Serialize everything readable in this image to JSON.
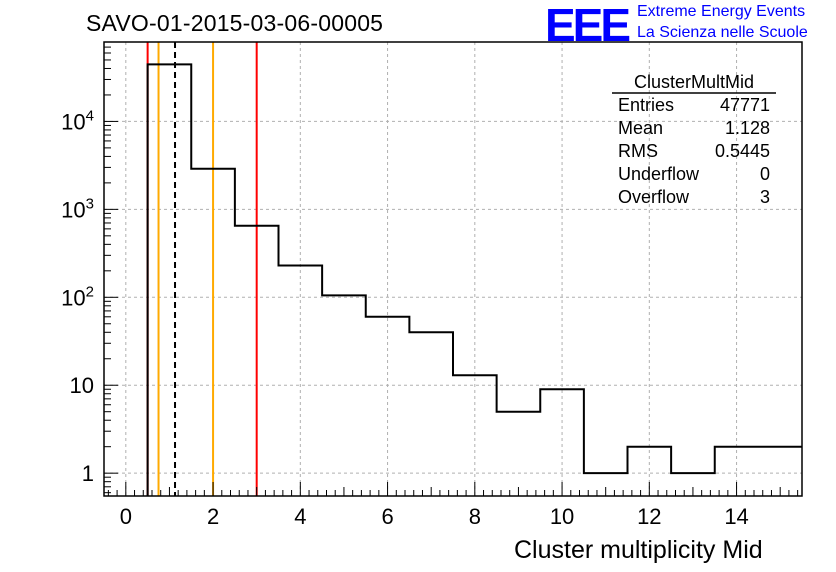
{
  "header": {
    "run_title": "SAVO-01-2015-03-06-00005",
    "logo_text": "EEE",
    "logo_line1": "Extreme Energy Events",
    "logo_line2": "La Scienza nelle Scuole",
    "logo_color": "#0000ff"
  },
  "chart_data": {
    "type": "histogram",
    "title": "ClusterMultMid",
    "xlabel": "Cluster multiplicity Mid",
    "ylabel": "",
    "y_scale": "log",
    "xlim": [
      -0.5,
      15.5
    ],
    "ylim": [
      0.55,
      80000
    ],
    "x_ticks": [
      0,
      2,
      4,
      6,
      8,
      10,
      12,
      14
    ],
    "y_ticks": [
      {
        "value": 1,
        "base": "1",
        "exp": ""
      },
      {
        "value": 10,
        "base": "10",
        "exp": ""
      },
      {
        "value": 100,
        "base": "10",
        "exp": "2"
      },
      {
        "value": 1000,
        "base": "10",
        "exp": "3"
      },
      {
        "value": 10000,
        "base": "10",
        "exp": "4"
      }
    ],
    "bins": [
      {
        "low": 0.5,
        "high": 1.5,
        "value": 44500
      },
      {
        "low": 1.5,
        "high": 2.5,
        "value": 2900
      },
      {
        "low": 2.5,
        "high": 3.5,
        "value": 650
      },
      {
        "low": 3.5,
        "high": 4.5,
        "value": 230
      },
      {
        "low": 4.5,
        "high": 5.5,
        "value": 105
      },
      {
        "low": 5.5,
        "high": 6.5,
        "value": 60
      },
      {
        "low": 6.5,
        "high": 7.5,
        "value": 40
      },
      {
        "low": 7.5,
        "high": 8.5,
        "value": 13
      },
      {
        "low": 8.5,
        "high": 9.5,
        "value": 5
      },
      {
        "low": 9.5,
        "high": 10.5,
        "value": 9
      },
      {
        "low": 10.5,
        "high": 11.5,
        "value": 1
      },
      {
        "low": 11.5,
        "high": 12.5,
        "value": 2
      },
      {
        "low": 12.5,
        "high": 13.5,
        "value": 1
      },
      {
        "low": 13.5,
        "high": 15.5,
        "value": 2
      }
    ],
    "vertical_lines": [
      {
        "x": 0.5,
        "color": "#ff0000",
        "style": "solid"
      },
      {
        "x": 0.75,
        "color": "#ffaa00",
        "style": "solid"
      },
      {
        "x": 1.128,
        "color": "#000000",
        "style": "dashed"
      },
      {
        "x": 2.0,
        "color": "#ffaa00",
        "style": "solid"
      },
      {
        "x": 3.0,
        "color": "#ff0000",
        "style": "solid"
      }
    ],
    "grid": true,
    "stats_box": {
      "title": "ClusterMultMid",
      "rows": [
        {
          "label": "Entries",
          "value": "47771"
        },
        {
          "label": "Mean",
          "value": "1.128"
        },
        {
          "label": "RMS",
          "value": "0.5445"
        },
        {
          "label": "Underflow",
          "value": "0"
        },
        {
          "label": "Overflow",
          "value": "3"
        }
      ]
    }
  }
}
